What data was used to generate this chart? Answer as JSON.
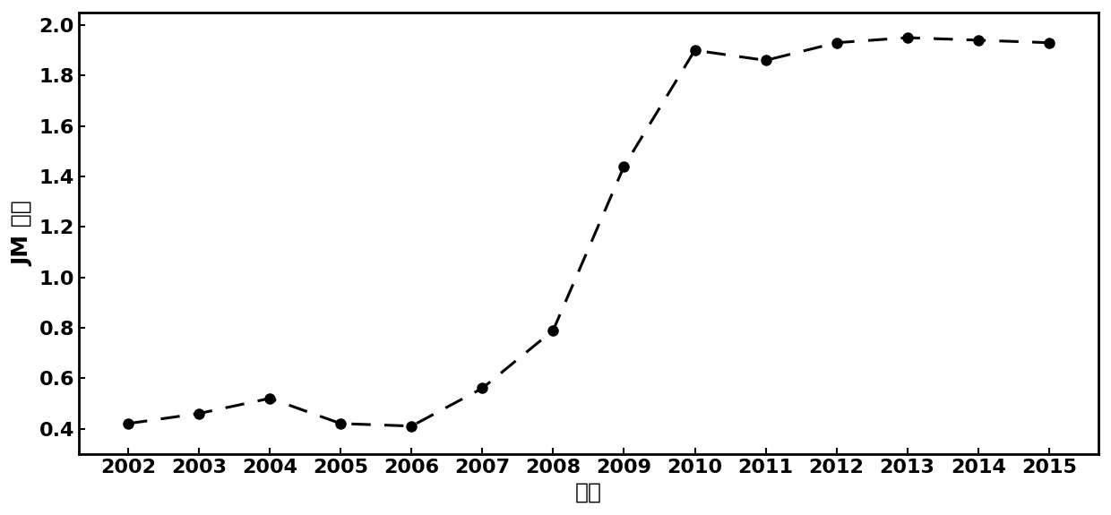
{
  "x": [
    2002,
    2003,
    2004,
    2005,
    2006,
    2007,
    2008,
    2009,
    2010,
    2011,
    2012,
    2013,
    2014,
    2015
  ],
  "y": [
    0.42,
    0.46,
    0.52,
    0.42,
    0.41,
    0.56,
    0.79,
    1.44,
    1.9,
    1.86,
    1.93,
    1.95,
    1.94,
    1.93
  ],
  "xlabel": "年份",
  "ylabel": "JM 距离",
  "ylim": [
    0.3,
    2.05
  ],
  "xlim": [
    2001.3,
    2015.7
  ],
  "yticks": [
    0.4,
    0.6,
    0.8,
    1.0,
    1.2,
    1.4,
    1.6,
    1.8,
    2.0
  ],
  "line_color": "#000000",
  "marker_color": "#000000",
  "marker_size": 8,
  "line_width": 2.2,
  "background_color": "#ffffff",
  "xlabel_fontsize": 18,
  "ylabel_fontsize": 18,
  "tick_fontsize": 16,
  "spine_linewidth": 2.0
}
